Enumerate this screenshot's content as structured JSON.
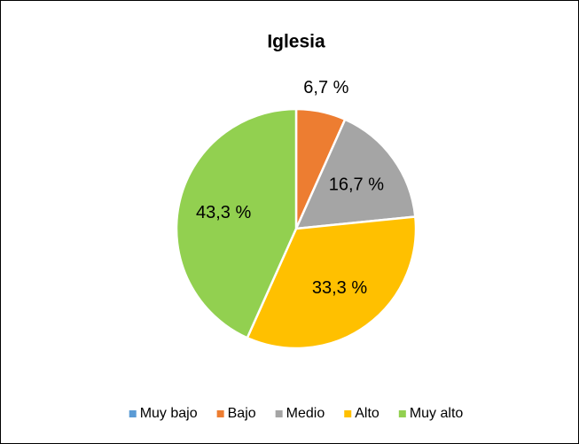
{
  "chart_data": {
    "type": "pie",
    "title": "Iglesia",
    "categories": [
      "Muy bajo",
      "Bajo",
      "Medio",
      "Alto",
      "Muy alto"
    ],
    "values": [
      0,
      6.7,
      16.7,
      33.3,
      43.3
    ],
    "value_labels": [
      null,
      "6,7 %",
      "16,7 %",
      "33,3 %",
      "43,3 %"
    ],
    "colors": [
      "#5b9bd5",
      "#ed7d31",
      "#a5a5a5",
      "#ffc000",
      "#92d050"
    ],
    "legend": "bottom"
  }
}
